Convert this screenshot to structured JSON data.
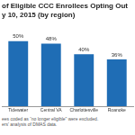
{
  "chart_data": {
    "type": "bar",
    "title": [
      "of Eligible CCC Enrollees Opting Out",
      "y 10, 2015 (by region)"
    ],
    "categories": [
      "Tidewater",
      "Central VA",
      "Charlottesville",
      "Roanoke"
    ],
    "values": [
      50,
      48,
      40,
      36
    ],
    "value_labels": [
      "50%",
      "48%",
      "40%",
      "36%"
    ],
    "color": "#1f6db5",
    "ylim": [
      0,
      60
    ],
    "yticks": [],
    "grid": false,
    "data_labels": true,
    "tick_labels": "x",
    "notes": [
      "ees coded as “no longer eligible” were excluded.",
      "ers' analysis of DMAS data."
    ]
  }
}
